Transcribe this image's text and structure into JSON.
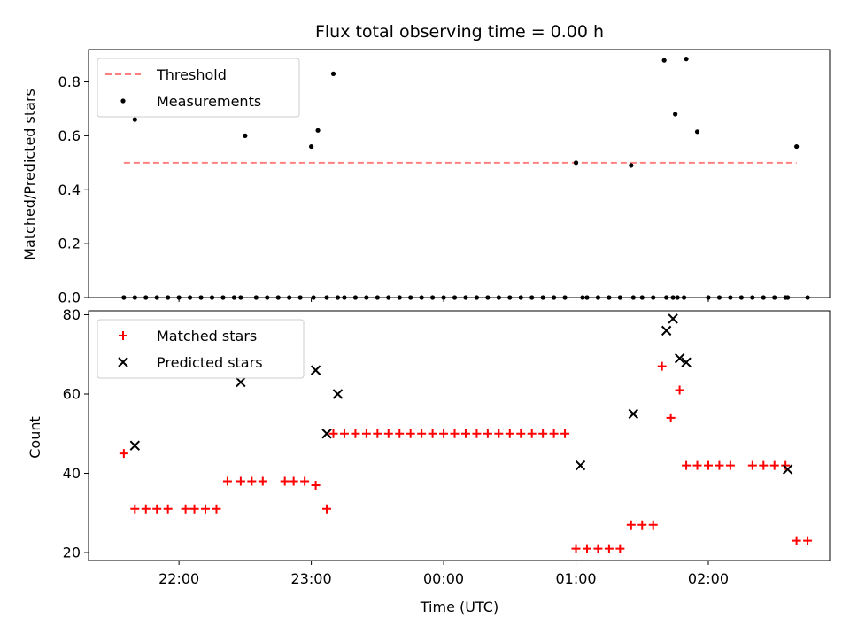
{
  "title": "Flux total observing time = 0.00 h",
  "colors": {
    "threshold": "#ff8080",
    "measurement": "#000000",
    "matched": "#ff0000",
    "predicted": "#000000"
  },
  "chart_data": [
    {
      "type": "scatter",
      "panel": "top",
      "ylabel": "Matched/Predicted stars",
      "ylim": [
        0,
        0.92
      ],
      "yticks": [
        0.0,
        0.2,
        0.4,
        0.6,
        0.8
      ],
      "ytick_labels": [
        "0.0",
        "0.2",
        "0.4",
        "0.6",
        "0.8"
      ],
      "xlim": [
        "21:19",
        "02:55"
      ],
      "legend_position": "top-left",
      "legend": [
        "Threshold",
        "Measurements"
      ],
      "series": [
        {
          "name": "Threshold",
          "style": "dashed-line",
          "x": [
            "21:35",
            "02:40"
          ],
          "y": [
            0.5,
            0.5
          ]
        },
        {
          "name": "Measurements",
          "style": "dot",
          "x": [
            "21:35",
            "21:40",
            "21:45",
            "21:50",
            "21:55",
            "22:00",
            "22:05",
            "22:10",
            "22:15",
            "22:20",
            "22:25",
            "22:30",
            "22:35",
            "22:40",
            "22:45",
            "22:50",
            "22:55",
            "23:00",
            "23:03",
            "23:10",
            "23:15",
            "23:20",
            "23:25",
            "23:30",
            "23:35",
            "23:40",
            "23:45",
            "23:50",
            "23:55",
            "00:00",
            "00:05",
            "00:10",
            "00:15",
            "00:20",
            "00:25",
            "00:30",
            "00:35",
            "00:40",
            "00:45",
            "00:50",
            "00:55",
            "01:00",
            "01:05",
            "01:10",
            "01:15",
            "01:20",
            "01:25",
            "01:30",
            "01:35",
            "01:40",
            "01:45",
            "01:50",
            "01:55",
            "02:00",
            "02:05",
            "02:10",
            "02:15",
            "02:20",
            "02:25",
            "02:30",
            "02:35",
            "02:40",
            "02:45",
            "21:40",
            "22:28",
            "23:01",
            "23:07",
            "23:12",
            "01:03",
            "01:26",
            "01:41",
            "01:44",
            "01:46",
            "01:49",
            "02:36"
          ],
          "y": [
            0,
            0.66,
            0,
            0,
            0,
            0,
            0,
            0,
            0,
            0,
            0,
            0.6,
            0,
            0,
            0,
            0,
            0,
            0.56,
            0.62,
            0.83,
            0,
            0,
            0,
            0,
            0,
            0,
            0,
            0,
            0,
            0,
            0,
            0,
            0,
            0,
            0,
            0,
            0,
            0,
            0,
            0,
            0,
            0.5,
            0,
            0,
            0,
            0,
            0.49,
            0,
            0,
            0.88,
            0.68,
            0.885,
            0.615,
            0,
            0,
            0,
            0,
            0,
            0,
            0,
            0,
            0.56,
            0,
            0,
            0,
            0,
            0,
            0,
            0,
            0,
            0,
            0,
            0,
            0,
            0
          ]
        }
      ]
    },
    {
      "type": "scatter",
      "panel": "bottom",
      "ylabel": "Count",
      "xlabel": "Time (UTC)",
      "ylim": [
        18,
        81
      ],
      "yticks": [
        20,
        40,
        60,
        80
      ],
      "ytick_labels": [
        "20",
        "40",
        "60",
        "80"
      ],
      "xlim": [
        "21:19",
        "02:55"
      ],
      "xticks": [
        "22:00",
        "23:00",
        "00:00",
        "01:00",
        "02:00"
      ],
      "xtick_labels": [
        "22:00",
        "23:00",
        "00:00",
        "01:00",
        "02:00"
      ],
      "legend_position": "top-left",
      "legend": [
        "Matched stars",
        "Predicted stars"
      ],
      "series": [
        {
          "name": "Matched stars",
          "marker": "plus",
          "x": [
            "21:35",
            "21:40",
            "21:45",
            "21:50",
            "21:55",
            "22:03",
            "22:07",
            "22:12",
            "22:17",
            "22:22",
            "22:28",
            "22:33",
            "22:38",
            "22:48",
            "22:52",
            "22:57",
            "23:02",
            "23:07",
            "23:10",
            "23:15",
            "23:20",
            "23:25",
            "23:30",
            "23:35",
            "23:40",
            "23:45",
            "23:50",
            "23:55",
            "00:00",
            "00:05",
            "00:10",
            "00:15",
            "00:20",
            "00:25",
            "00:30",
            "00:35",
            "00:40",
            "00:45",
            "00:50",
            "00:55",
            "01:00",
            "01:05",
            "01:10",
            "01:15",
            "01:20",
            "01:25",
            "01:30",
            "01:35",
            "01:39",
            "01:43",
            "01:47",
            "01:50",
            "01:55",
            "02:00",
            "02:05",
            "02:10",
            "02:20",
            "02:25",
            "02:30",
            "02:35",
            "02:40",
            "02:45"
          ],
          "y": [
            45,
            31,
            31,
            31,
            31,
            31,
            31,
            31,
            31,
            38,
            38,
            38,
            38,
            38,
            38,
            38,
            37,
            31,
            50,
            50,
            50,
            50,
            50,
            50,
            50,
            50,
            50,
            50,
            50,
            50,
            50,
            50,
            50,
            50,
            50,
            50,
            50,
            50,
            50,
            50,
            21,
            21,
            21,
            21,
            21,
            27,
            27,
            27,
            67,
            54,
            61,
            42,
            42,
            42,
            42,
            42,
            42,
            42,
            42,
            42,
            23,
            23
          ]
        },
        {
          "name": "Predicted stars",
          "marker": "x",
          "x": [
            "21:40",
            "22:28",
            "23:02",
            "23:07",
            "23:12",
            "01:02",
            "01:26",
            "01:41",
            "01:44",
            "01:47",
            "01:50",
            "02:36"
          ],
          "y": [
            47,
            63,
            66,
            50,
            60,
            42,
            55,
            76,
            79,
            69,
            68,
            41
          ]
        }
      ]
    }
  ]
}
